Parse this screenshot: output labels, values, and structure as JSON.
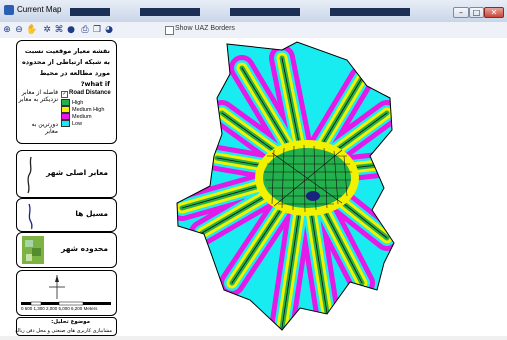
{
  "window": {
    "title": "Current Map",
    "min": "–",
    "max": "□",
    "close": "✕"
  },
  "toolbar": {
    "icons": [
      "zoom-in-icon",
      "zoom-out-icon",
      "pan-icon",
      "full-extent-icon",
      "select-icon",
      "identify-icon",
      "print-icon",
      "copy-icon",
      "help-icon"
    ],
    "show_border_label": "Show UAZ Borders",
    "show_border_checked": false
  },
  "legend": {
    "title": "نقشه معیار موقعیت نسبت به شبکه ارتباطی از محدوده مورد مطالعه در محیط what if?",
    "near_label": "فاصله از معابر نزدیکتر به معابر",
    "far_label": "دورترین به معابر",
    "header": "Road Distance",
    "checked": true,
    "items": [
      {
        "label": "High",
        "color": "#22b14c"
      },
      {
        "label": "Medium High",
        "color": "#f2f200"
      },
      {
        "label": "Medium",
        "color": "#e31ae8"
      },
      {
        "label": "Low",
        "color": "#18ecf0"
      }
    ]
  },
  "layers": {
    "main_roads": "معابر اصلی شهر",
    "waterways": "مسیل ها",
    "city_limit": "محدوده شهر"
  },
  "scale": {
    "ticks": "0   600  1,300    2,000     5,000     6,200",
    "unit": "Meters"
  },
  "topic": {
    "title": "موضوع تحلیل:",
    "subtitle": "مشابیازی کاربری های صنعتی و محل دفن زباله"
  },
  "colors": {
    "high": "#22b14c",
    "medium_high": "#f2f200",
    "medium": "#e31ae8",
    "low": "#18ecf0",
    "roads": "#111111"
  }
}
